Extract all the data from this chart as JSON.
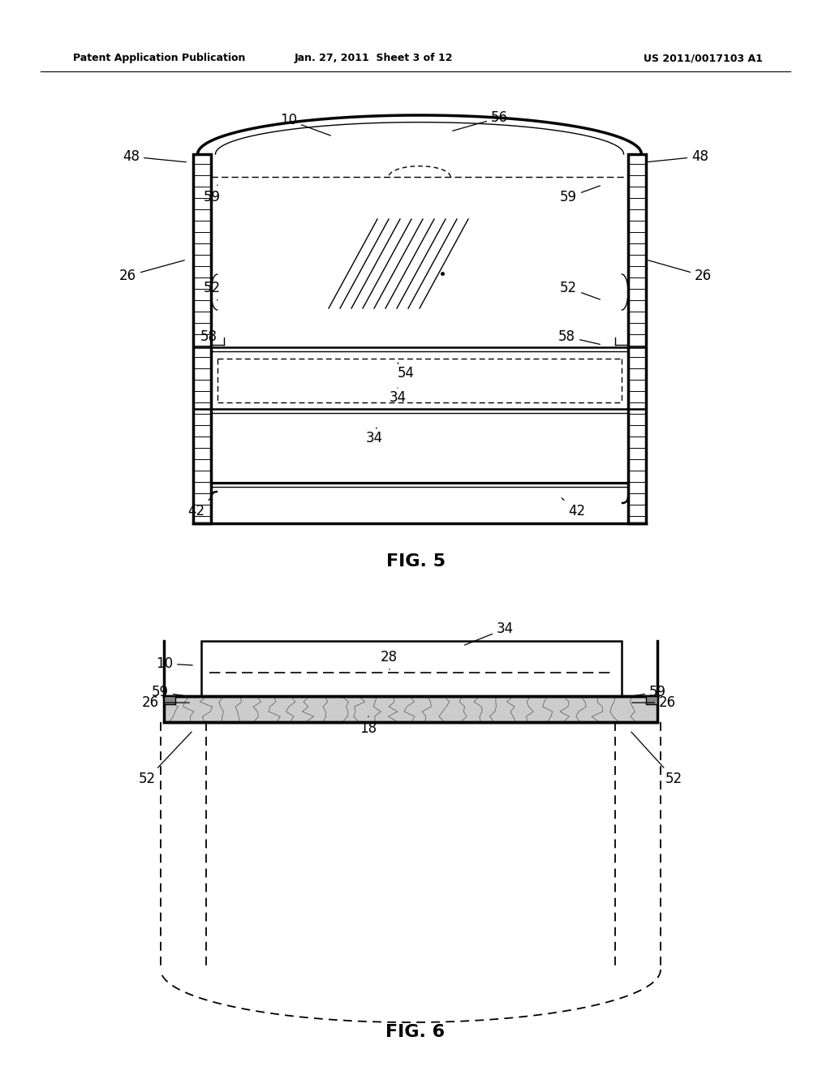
{
  "header_left": "Patent Application Publication",
  "header_center": "Jan. 27, 2011  Sheet 3 of 12",
  "header_right": "US 2011/0017103 A1",
  "fig5_label": "FIG. 5",
  "fig6_label": "FIG. 6",
  "bg_color": "#ffffff",
  "line_color": "#000000"
}
